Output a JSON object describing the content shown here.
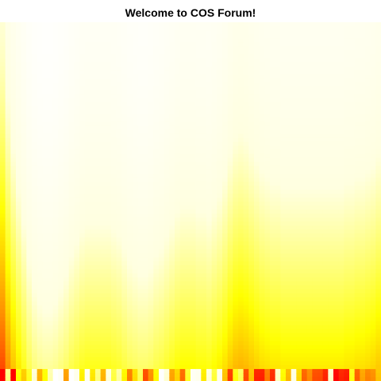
{
  "chart_data": {
    "type": "heatmap",
    "title": "Welcome to COS Forum!",
    "xlabel": "",
    "ylabel": "",
    "axes_shown": false,
    "grid": false,
    "legend": "none",
    "color_map": "heat",
    "color_scale": [
      "#ff0000",
      "#ff8000",
      "#ffff00",
      "#ffffe0",
      "#ffffff"
    ],
    "n_columns": 72,
    "n_rows": 90,
    "value_range": [
      0,
      1
    ],
    "column_profile": [
      0.47,
      0.6,
      0.69,
      0.76,
      0.82,
      0.88,
      0.92,
      0.94,
      0.95,
      0.95,
      0.94,
      0.92,
      0.9,
      0.87,
      0.85,
      0.83,
      0.82,
      0.82,
      0.82,
      0.82,
      0.82,
      0.83,
      0.84,
      0.86,
      0.88,
      0.89,
      0.9,
      0.9,
      0.89,
      0.87,
      0.86,
      0.84,
      0.82,
      0.8,
      0.79,
      0.79,
      0.79,
      0.8,
      0.8,
      0.81,
      0.79,
      0.77,
      0.74,
      0.7,
      0.67,
      0.66,
      0.67,
      0.69,
      0.71,
      0.73,
      0.74,
      0.75,
      0.75,
      0.76,
      0.76,
      0.76,
      0.76,
      0.76,
      0.76,
      0.76,
      0.76,
      0.76,
      0.76,
      0.76,
      0.76,
      0.75,
      0.75,
      0.74,
      0.74,
      0.73,
      0.72,
      0.7
    ]
  }
}
